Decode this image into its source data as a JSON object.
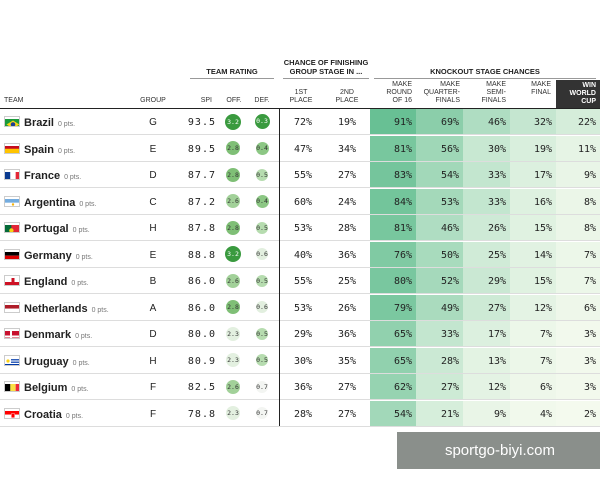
{
  "header": {
    "team_rating": "TEAM RATING",
    "group_stage": "CHANCE OF FINISHING GROUP STAGE IN ...",
    "knockout": "KNOCKOUT STAGE CHANCES",
    "team": "TEAM",
    "group": "GROUP",
    "spi": "SPI",
    "off": "OFF.",
    "def": "DEF.",
    "first_place": "1ST PLACE",
    "second_place": "2ND PLACE",
    "round16": "MAKE ROUND OF 16",
    "quarterfinals": "MAKE QUARTER-FINALS",
    "semifinals": "MAKE SEMI-FINALS",
    "final": "MAKE FINAL",
    "win": "WIN WORLD CUP"
  },
  "teams": [
    {
      "name": "Brazil",
      "pts": "0 pts.",
      "group": "G",
      "spi": "93.5",
      "off": "3.2",
      "def": "0.3",
      "first": "72%",
      "second": "19%",
      "r16": "91%",
      "qf": "69%",
      "sf": "46%",
      "final": "32%",
      "win": "22%",
      "flag": "brazil-flag",
      "off_color": "#3a9a3f",
      "def_color": "#3a9a3f"
    },
    {
      "name": "Spain",
      "pts": "0 pts.",
      "group": "E",
      "spi": "89.5",
      "off": "2.8",
      "def": "0.4",
      "first": "47%",
      "second": "34%",
      "r16": "81%",
      "qf": "56%",
      "sf": "30%",
      "final": "19%",
      "win": "11%",
      "flag": "spain-flag",
      "off_color": "#7fbf76",
      "def_color": "#8cc784"
    },
    {
      "name": "France",
      "pts": "0 pts.",
      "group": "D",
      "spi": "87.7",
      "off": "2.8",
      "def": "0.5",
      "first": "55%",
      "second": "27%",
      "r16": "83%",
      "qf": "54%",
      "sf": "33%",
      "final": "17%",
      "win": "9%",
      "flag": "france-flag",
      "off_color": "#7fbf76",
      "def_color": "#b6dcaf"
    },
    {
      "name": "Argentina",
      "pts": "0 pts.",
      "group": "C",
      "spi": "87.2",
      "off": "2.6",
      "def": "0.4",
      "first": "60%",
      "second": "24%",
      "r16": "84%",
      "qf": "53%",
      "sf": "33%",
      "final": "16%",
      "win": "8%",
      "flag": "argentina-flag",
      "off_color": "#a2d199",
      "def_color": "#8cc784"
    },
    {
      "name": "Portugal",
      "pts": "0 pts.",
      "group": "H",
      "spi": "87.8",
      "off": "2.8",
      "def": "0.5",
      "first": "53%",
      "second": "28%",
      "r16": "81%",
      "qf": "46%",
      "sf": "26%",
      "final": "15%",
      "win": "8%",
      "flag": "portugal-flag",
      "off_color": "#7fbf76",
      "def_color": "#b6dcaf"
    },
    {
      "name": "Germany",
      "pts": "0 pts.",
      "group": "E",
      "spi": "88.8",
      "off": "3.2",
      "def": "0.6",
      "first": "40%",
      "second": "36%",
      "r16": "76%",
      "qf": "50%",
      "sf": "25%",
      "final": "14%",
      "win": "7%",
      "flag": "germany-flag",
      "off_color": "#3a9a3f",
      "def_color": "#e2efdf"
    },
    {
      "name": "England",
      "pts": "0 pts.",
      "group": "B",
      "spi": "86.0",
      "off": "2.6",
      "def": "0.5",
      "first": "55%",
      "second": "25%",
      "r16": "80%",
      "qf": "52%",
      "sf": "29%",
      "final": "15%",
      "win": "7%",
      "flag": "england-flag",
      "off_color": "#a2d199",
      "def_color": "#b6dcaf"
    },
    {
      "name": "Netherlands",
      "pts": "0 pts.",
      "group": "A",
      "spi": "86.0",
      "off": "2.8",
      "def": "0.6",
      "first": "53%",
      "second": "26%",
      "r16": "79%",
      "qf": "49%",
      "sf": "27%",
      "final": "12%",
      "win": "6%",
      "flag": "netherlands-flag",
      "off_color": "#7fbf76",
      "def_color": "#e2efdf"
    },
    {
      "name": "Denmark",
      "pts": "0 pts.",
      "group": "D",
      "spi": "80.0",
      "off": "2.3",
      "def": "0.5",
      "first": "29%",
      "second": "36%",
      "r16": "65%",
      "qf": "33%",
      "sf": "17%",
      "final": "7%",
      "win": "3%",
      "flag": "denmark-flag",
      "off_color": "#e3f0e0",
      "def_color": "#b6dcaf"
    },
    {
      "name": "Uruguay",
      "pts": "0 pts.",
      "group": "H",
      "spi": "80.9",
      "off": "2.3",
      "def": "0.5",
      "first": "30%",
      "second": "35%",
      "r16": "65%",
      "qf": "28%",
      "sf": "13%",
      "final": "7%",
      "win": "3%",
      "flag": "uruguay-flag",
      "off_color": "#e3f0e0",
      "def_color": "#b6dcaf"
    },
    {
      "name": "Belgium",
      "pts": "0 pts.",
      "group": "F",
      "spi": "82.5",
      "off": "2.6",
      "def": "0.7",
      "first": "36%",
      "second": "27%",
      "r16": "62%",
      "qf": "27%",
      "sf": "12%",
      "final": "6%",
      "win": "3%",
      "flag": "belgium-flag",
      "off_color": "#a2d199",
      "def_color": "#f3f5f2"
    },
    {
      "name": "Croatia",
      "pts": "0 pts.",
      "group": "F",
      "spi": "78.8",
      "off": "2.3",
      "def": "0.7",
      "first": "28%",
      "second": "27%",
      "r16": "54%",
      "qf": "21%",
      "sf": "9%",
      "final": "4%",
      "win": "2%",
      "flag": "croatia-flag",
      "off_color": "#e3f0e0",
      "def_color": "#f3f5f2"
    }
  ],
  "watermark": "sportgo-biyi.com"
}
